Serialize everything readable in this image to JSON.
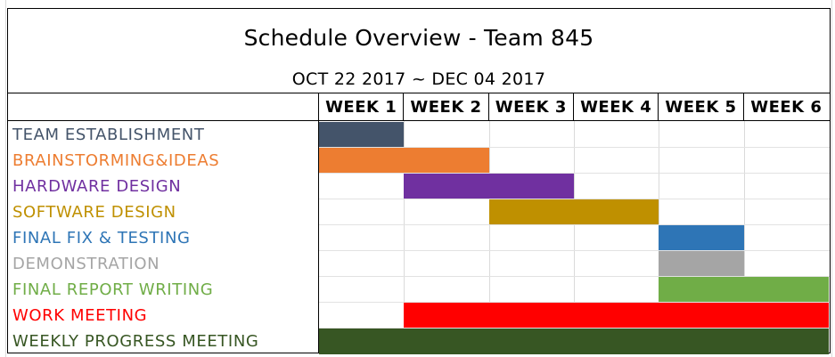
{
  "title": "Schedule Overview - Team 845",
  "date_range": "OCT 22 2017 ~ DEC 04 2017",
  "weeks": [
    "WEEK 1",
    "WEEK 2",
    "WEEK 3",
    "WEEK 4",
    "WEEK 5",
    "WEEK 6"
  ],
  "tasks": [
    {
      "label": "TEAM ESTABLISHMENT",
      "color": "#44546a",
      "start_week": 1,
      "end_week": 1
    },
    {
      "label": "BRAINSTORMING&IDEAS",
      "color": "#ed7d31",
      "start_week": 1,
      "end_week": 2
    },
    {
      "label": "HARDWARE DESIGN",
      "color": "#7030a0",
      "start_week": 2,
      "end_week": 3
    },
    {
      "label": "SOFTWARE DESIGN",
      "color": "#bf9000",
      "start_week": 3,
      "end_week": 4
    },
    {
      "label": "FINAL FIX & TESTING",
      "color": "#2e75b6",
      "start_week": 5,
      "end_week": 5
    },
    {
      "label": "DEMONSTRATION",
      "color": "#a5a5a5",
      "start_week": 5,
      "end_week": 5
    },
    {
      "label": "FINAL REPORT WRITING",
      "color": "#70ad47",
      "start_week": 5,
      "end_week": 6
    },
    {
      "label": "WORK MEETING",
      "color": "#ff0000",
      "start_week": 2,
      "end_week": 6
    },
    {
      "label": "WEEKLY PROGRESS MEETING",
      "color": "#375623",
      "start_week": 1,
      "end_week": 6
    }
  ]
}
